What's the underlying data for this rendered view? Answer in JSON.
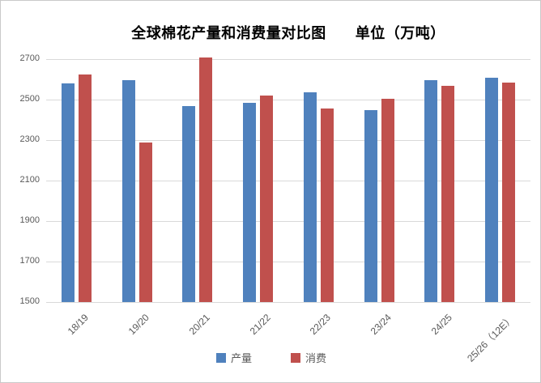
{
  "title": {
    "main": "全球棉花产量和消费量对比图",
    "unit": "单位（万吨）"
  },
  "colors": {
    "production": "#4F81BD",
    "consumption": "#C0504D",
    "gridline": "#D9D9D9",
    "axis_text": "#595959",
    "title_text": "#000000",
    "chart_border": "#C9C9C9"
  },
  "chart_data": {
    "type": "bar",
    "title": "全球棉花产量和消费量对比图　单位（万吨）",
    "categories": [
      "18/19",
      "19/20",
      "20/21",
      "21/22",
      "22/23",
      "23/24",
      "24/25",
      "25/26（12E）"
    ],
    "series": [
      {
        "name": "产量",
        "color": "#4F81BD",
        "values": [
          2580,
          2595,
          2470,
          2485,
          2535,
          2450,
          2595,
          2610
        ]
      },
      {
        "name": "消费",
        "color": "#C0504D",
        "values": [
          2625,
          2290,
          2710,
          2520,
          2455,
          2505,
          2570,
          2585
        ]
      }
    ],
    "xlabel": "",
    "ylabel": "",
    "ylim": [
      1500,
      2700
    ],
    "yticks": [
      1500,
      1700,
      1900,
      2100,
      2300,
      2500,
      2700
    ],
    "grid": true,
    "legend_position": "bottom"
  }
}
